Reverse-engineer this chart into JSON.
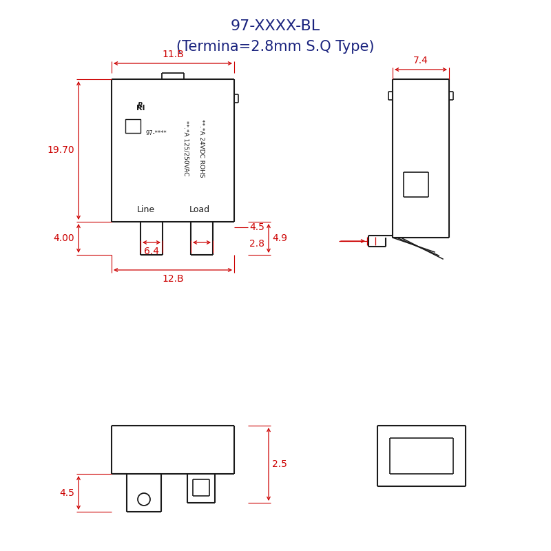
{
  "title_line1": "97-XXXX-BL",
  "title_line2": "(Termina=2.8mm S.Q Type)",
  "title_fontsize": 16,
  "title_color": "#1a237e",
  "bg_color": "#ffffff",
  "line_color": "#1a1a1a",
  "dim_color": "#cc0000",
  "dim_fontsize": 10,
  "label_fontsize": 9,
  "small_fontsize": 6.5,
  "dims_labels": {
    "w118": "11.B",
    "h1970": "19.70",
    "h400": "4.00",
    "w128": "12.B",
    "w64": "6.4",
    "h45_conn": "4.5",
    "w28": "2.8",
    "h49": "4.9",
    "h25": "2.5",
    "h45_bot": "4.5",
    "w74": "7.4"
  }
}
